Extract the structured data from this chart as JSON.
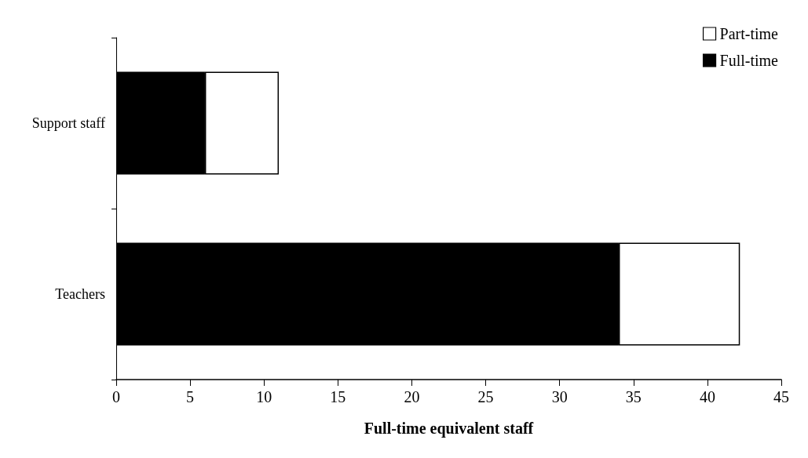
{
  "chart_data": {
    "type": "bar",
    "orientation": "horizontal",
    "stacked": true,
    "xlabel": "Full-time equivalent staff",
    "categories": [
      "Support staff",
      "Teachers"
    ],
    "series": [
      {
        "name": "Full-time",
        "color": "#000000",
        "values": [
          6,
          34
        ]
      },
      {
        "name": "Part-time",
        "color": "#ffffff",
        "values": [
          5,
          8.2
        ]
      }
    ],
    "xlim": [
      0,
      45
    ],
    "xticks": [
      0,
      5,
      10,
      15,
      20,
      25,
      30,
      35,
      40,
      45
    ],
    "grid": false,
    "legend": "top right"
  }
}
